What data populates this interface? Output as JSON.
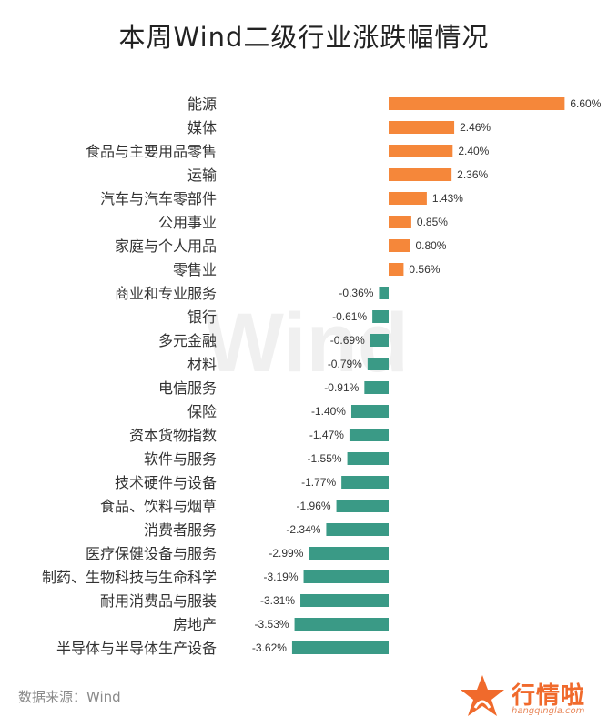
{
  "title": "本周Wind二级行业涨跌幅情况",
  "watermark": "Wind",
  "source": "数据来源：Wind",
  "logo": {
    "name": "行情啦",
    "url": "hangqingla.com"
  },
  "colors": {
    "positive": "#f5873a",
    "negative": "#3a9a86"
  },
  "chart_data": {
    "type": "bar",
    "orientation": "horizontal",
    "categories": [
      "能源",
      "媒体",
      "食品与主要用品零售",
      "运输",
      "汽车与汽车零部件",
      "公用事业",
      "家庭与个人用品",
      "零售业",
      "商业和专业服务",
      "银行",
      "多元金融",
      "材料",
      "电信服务",
      "保险",
      "资本货物指数",
      "软件与服务",
      "技术硬件与设备",
      "食品、饮料与烟草",
      "消费者服务",
      "医疗保健设备与服务",
      "制药、生物科技与生命科学",
      "耐用消费品与服装",
      "房地产",
      "半导体与半导体生产设备"
    ],
    "values": [
      6.6,
      2.46,
      2.4,
      2.36,
      1.43,
      0.85,
      0.8,
      0.56,
      -0.36,
      -0.61,
      -0.69,
      -0.79,
      -0.91,
      -1.4,
      -1.47,
      -1.55,
      -1.77,
      -1.96,
      -2.34,
      -2.99,
      -3.19,
      -3.31,
      -3.53,
      -3.62
    ],
    "labels": [
      "6.60%",
      "2.46%",
      "2.40%",
      "2.36%",
      "1.43%",
      "0.85%",
      "0.80%",
      "0.56%",
      "-0.36%",
      "-0.61%",
      "-0.69%",
      "-0.79%",
      "-0.91%",
      "-1.40%",
      "-1.47%",
      "-1.55%",
      "-1.77%",
      "-1.96%",
      "-2.34%",
      "-2.99%",
      "-3.19%",
      "-3.31%",
      "-3.53%",
      "-3.62%"
    ],
    "unit": "%",
    "grid": false,
    "legend": "none"
  }
}
